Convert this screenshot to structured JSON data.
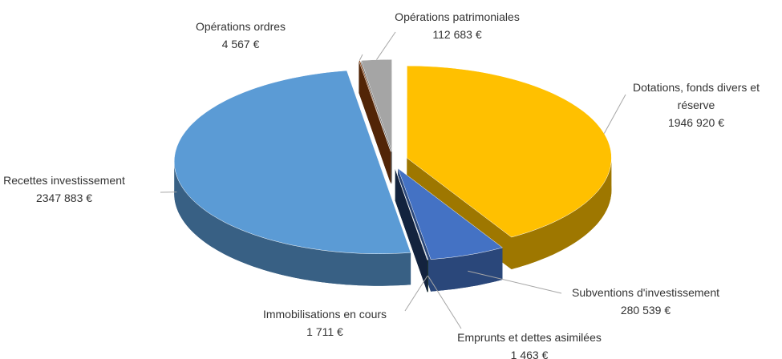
{
  "chart_data": {
    "type": "pie",
    "categories": [
      "Dotations, fonds divers et réserve",
      "Subventions d'investissement",
      "Emprunts et dettes asimilées",
      "Immobilisations en cours",
      "Recettes  investissement",
      "Opérations ordres",
      "Opérations patrimoniales"
    ],
    "values": [
      1946920,
      280539,
      1463,
      1711,
      2347883,
      4567,
      112683
    ],
    "value_labels": [
      "1946 920 €",
      "280 539 €",
      "1 463 €",
      "1 711 €",
      "2347 883 €",
      "4 567 €",
      "112 683 €"
    ],
    "colors": [
      "#ffc000",
      "#4472c4",
      "#4e7a2a",
      "#1f3864",
      "#5b9bd5",
      "#843c0c",
      "#a5a5a5"
    ],
    "exploded": true,
    "three_d": true
  }
}
